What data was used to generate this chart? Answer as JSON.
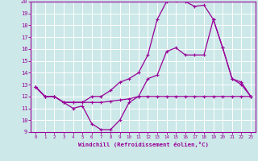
{
  "xlabel": "Windchill (Refroidissement éolien,°C)",
  "background_color": "#cce8e8",
  "grid_color": "#ffffff",
  "line_color": "#990099",
  "xlim": [
    -0.5,
    23.5
  ],
  "ylim": [
    9,
    20
  ],
  "yticks": [
    9,
    10,
    11,
    12,
    13,
    14,
    15,
    16,
    17,
    18,
    19,
    20
  ],
  "xticks": [
    0,
    1,
    2,
    3,
    4,
    5,
    6,
    7,
    8,
    9,
    10,
    11,
    12,
    13,
    14,
    15,
    16,
    17,
    18,
    19,
    20,
    21,
    22,
    23
  ],
  "line1_x": [
    0,
    1,
    2,
    3,
    4,
    5,
    6,
    7,
    8,
    9,
    10,
    11,
    12,
    13,
    14,
    15,
    16,
    17,
    18,
    19,
    20,
    21,
    22,
    23
  ],
  "line1_y": [
    12.8,
    12.0,
    12.0,
    11.5,
    11.0,
    11.2,
    9.7,
    9.2,
    9.2,
    10.0,
    11.5,
    12.0,
    13.5,
    13.8,
    15.8,
    16.1,
    15.5,
    15.5,
    15.5,
    18.5,
    16.1,
    13.5,
    13.2,
    12.0
  ],
  "line2_x": [
    0,
    1,
    2,
    3,
    4,
    5,
    6,
    7,
    8,
    9,
    10,
    11,
    12,
    13,
    14,
    15,
    16,
    17,
    18,
    19,
    20,
    21,
    22,
    23
  ],
  "line2_y": [
    12.8,
    12.0,
    12.0,
    11.5,
    11.5,
    11.5,
    11.5,
    11.5,
    11.6,
    11.7,
    11.8,
    12.0,
    12.0,
    12.0,
    12.0,
    12.0,
    12.0,
    12.0,
    12.0,
    12.0,
    12.0,
    12.0,
    12.0,
    12.0
  ],
  "line3_x": [
    0,
    1,
    2,
    3,
    4,
    5,
    6,
    7,
    8,
    9,
    10,
    11,
    12,
    13,
    14,
    15,
    16,
    17,
    18,
    19,
    20,
    21,
    22,
    23
  ],
  "line3_y": [
    12.8,
    12.0,
    12.0,
    11.5,
    11.5,
    11.5,
    12.0,
    12.0,
    12.5,
    13.2,
    13.5,
    14.0,
    15.5,
    18.5,
    20.0,
    20.1,
    20.0,
    19.6,
    19.7,
    18.5,
    16.1,
    13.5,
    13.0,
    12.0
  ]
}
